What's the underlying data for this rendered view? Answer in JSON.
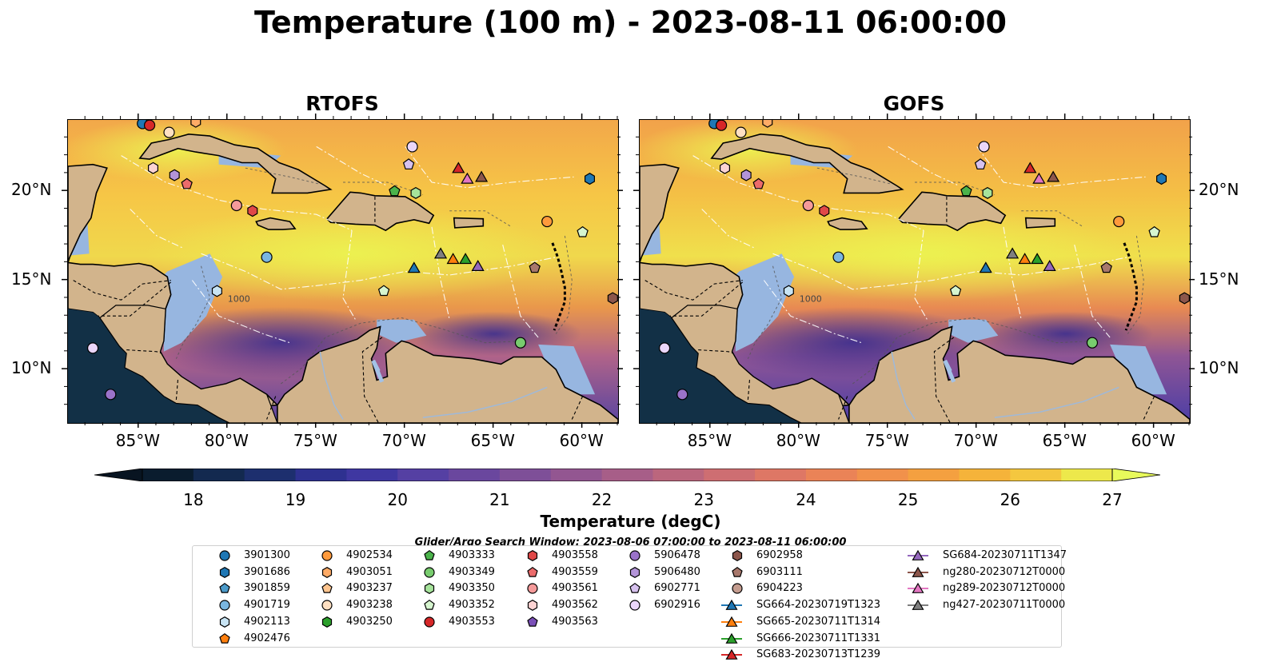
{
  "title": "Temperature (100 m) - 2023-08-11 06:00:00",
  "panels": [
    {
      "title": "RTOFS"
    },
    {
      "title": "GOFS"
    }
  ],
  "lon_ticks": [
    "85°W",
    "80°W",
    "75°W",
    "70°W",
    "65°W",
    "60°W"
  ],
  "lat_ticks": [
    "20°N",
    "15°N",
    "10°N"
  ],
  "depth_contour_label": "1000",
  "colorbar": {
    "label": "Temperature (degC)",
    "ticks": [
      "18",
      "19",
      "20",
      "21",
      "22",
      "23",
      "24",
      "25",
      "26",
      "27"
    ],
    "colors": [
      "#0a1c2e",
      "#13294f",
      "#1d2f6e",
      "#2e3190",
      "#3f37a1",
      "#5540a3",
      "#6a479e",
      "#7e4f98",
      "#935691",
      "#a75e88",
      "#bb667d",
      "#ce6e72",
      "#de7765",
      "#ea8357",
      "#f1914b",
      "#f4a040",
      "#f5b33a",
      "#f4c73f",
      "#ede84b"
    ],
    "extend_low": "#081421",
    "extend_high": "#e8fa5b"
  },
  "search_window": "Glider/Argo Search Window: 2023-08-06 07:00:00 to 2023-08-11 06:00:00",
  "legend": [
    {
      "label": "3901300",
      "marker": "circle",
      "color": "#1f77b4"
    },
    {
      "label": "3901686",
      "marker": "hexagon",
      "color": "#1f77b4"
    },
    {
      "label": "3901859",
      "marker": "pentagon",
      "color": "#4b9ac9"
    },
    {
      "label": "4901719",
      "marker": "circle",
      "color": "#7ab6e0"
    },
    {
      "label": "4902113",
      "marker": "hexagon",
      "color": "#c8e4f4"
    },
    {
      "label": "4902476",
      "marker": "pentagon",
      "color": "#ff7f0e"
    },
    {
      "label": "4902534",
      "marker": "circle",
      "color": "#ff9a3c"
    },
    {
      "label": "4903051",
      "marker": "hexagon",
      "color": "#ffab66"
    },
    {
      "label": "4903237",
      "marker": "pentagon",
      "color": "#ffc58f"
    },
    {
      "label": "4903238",
      "marker": "circle",
      "color": "#ffe0c2"
    },
    {
      "label": "4903250",
      "marker": "hexagon",
      "color": "#2ca02c"
    },
    {
      "label": "4903333",
      "marker": "pentagon",
      "color": "#4bb34b"
    },
    {
      "label": "4903349",
      "marker": "circle",
      "color": "#78cc6e"
    },
    {
      "label": "4903350",
      "marker": "hexagon",
      "color": "#a6e39b"
    },
    {
      "label": "4903352",
      "marker": "pentagon",
      "color": "#d6f5cf"
    },
    {
      "label": "4903553",
      "marker": "circle",
      "color": "#d62728"
    },
    {
      "label": "4903558",
      "marker": "hexagon",
      "color": "#e04848"
    },
    {
      "label": "4903559",
      "marker": "pentagon",
      "color": "#eb6b6b"
    },
    {
      "label": "4903561",
      "marker": "circle",
      "color": "#f59a9a"
    },
    {
      "label": "4903562",
      "marker": "hexagon",
      "color": "#fcd3d3"
    },
    {
      "label": "4903563",
      "marker": "pentagon",
      "color": "#7b50b8"
    },
    {
      "label": "5906478",
      "marker": "circle",
      "color": "#9a72c9"
    },
    {
      "label": "5906480",
      "marker": "hexagon",
      "color": "#b394d8"
    },
    {
      "label": "6902771",
      "marker": "pentagon",
      "color": "#d6c1ee"
    },
    {
      "label": "6902916",
      "marker": "circle",
      "color": "#ebd6fa"
    },
    {
      "label": "6902958",
      "marker": "hexagon",
      "color": "#8c564b"
    },
    {
      "label": "6903111",
      "marker": "pentagon",
      "color": "#a8786c"
    },
    {
      "label": "6904223",
      "marker": "circle",
      "color": "#c49c8f"
    },
    {
      "label": "SG664-20230719T1323",
      "marker": "triangle",
      "color": "#1f77b4",
      "line": true
    },
    {
      "label": "SG665-20230711T1314",
      "marker": "triangle",
      "color": "#ff7f0e",
      "line": true
    },
    {
      "label": "SG666-20230711T1331",
      "marker": "triangle",
      "color": "#2ca02c",
      "line": true
    },
    {
      "label": "SG683-20230713T1239",
      "marker": "triangle",
      "color": "#d62728",
      "line": true
    },
    {
      "label": "SG684-20230711T1347",
      "marker": "triangle",
      "color": "#9467bd",
      "line": true
    },
    {
      "label": "ng280-20230712T0000",
      "marker": "triangle",
      "color": "#8c564b",
      "line": true
    },
    {
      "label": "ng289-20230712T0000",
      "marker": "triangle",
      "color": "#e377c2",
      "line": true
    },
    {
      "label": "ng427-20230711T0000",
      "marker": "triangle",
      "color": "#7f7f7f",
      "line": true
    }
  ],
  "markers": [
    {
      "id": "3901300",
      "lon": -84.8,
      "lat": 23.8
    },
    {
      "id": "4903553",
      "lon": -84.4,
      "lat": 23.7
    },
    {
      "id": "4903238",
      "lon": -83.3,
      "lat": 23.3
    },
    {
      "id": "4903051",
      "lon": -81.8,
      "lat": 23.9
    },
    {
      "id": "4903562",
      "lon": -84.2,
      "lat": 21.3
    },
    {
      "id": "5906480",
      "lon": -83.0,
      "lat": 20.9
    },
    {
      "id": "4903559",
      "lon": -82.3,
      "lat": 20.4
    },
    {
      "id": "4903561",
      "lon": -79.5,
      "lat": 19.2
    },
    {
      "id": "4903558",
      "lon": -78.6,
      "lat": 18.9
    },
    {
      "id": "4901719",
      "lon": -77.8,
      "lat": 16.3
    },
    {
      "id": "4902113",
      "lon": -80.6,
      "lat": 14.4
    },
    {
      "id": "6902916",
      "lon": -69.6,
      "lat": 22.5
    },
    {
      "id": "6902771",
      "lon": -69.8,
      "lat": 21.5
    },
    {
      "id": "4903333",
      "lon": -70.6,
      "lat": 20.0
    },
    {
      "id": "4903350",
      "lon": -69.4,
      "lat": 19.9
    },
    {
      "id": "SG683-20230713T1239",
      "lon": -67.0,
      "lat": 21.3
    },
    {
      "id": "ng289-20230712T0000",
      "lon": -66.5,
      "lat": 20.7
    },
    {
      "id": "ng280-20230712T0000",
      "lon": -65.7,
      "lat": 20.8
    },
    {
      "id": "3901686",
      "lon": -59.6,
      "lat": 20.7
    },
    {
      "id": "4902534",
      "lon": -62.0,
      "lat": 18.3
    },
    {
      "id": "4903352",
      "lon": -60.0,
      "lat": 17.7
    },
    {
      "id": "ng427-20230711T0000",
      "lon": -68.0,
      "lat": 16.5
    },
    {
      "id": "SG665-20230711T1314",
      "lon": -67.3,
      "lat": 16.2
    },
    {
      "id": "SG666-20230711T1331",
      "lon": -66.6,
      "lat": 16.2
    },
    {
      "id": "SG684-20230711T1347",
      "lon": -65.9,
      "lat": 15.8
    },
    {
      "id": "SG664-20230719T1323",
      "lon": -69.5,
      "lat": 15.7
    },
    {
      "id": "6903111",
      "lon": -62.7,
      "lat": 15.7
    },
    {
      "id": "4903349",
      "lon": -63.5,
      "lat": 11.5
    },
    {
      "id": "4903352",
      "lon": -71.2,
      "lat": 14.4
    },
    {
      "id": "6902958",
      "lon": -58.3,
      "lat": 14.0
    },
    {
      "id": "6902916",
      "lon": -87.6,
      "lat": 11.2
    },
    {
      "id": "5906478",
      "lon": -86.6,
      "lat": 8.6
    }
  ]
}
